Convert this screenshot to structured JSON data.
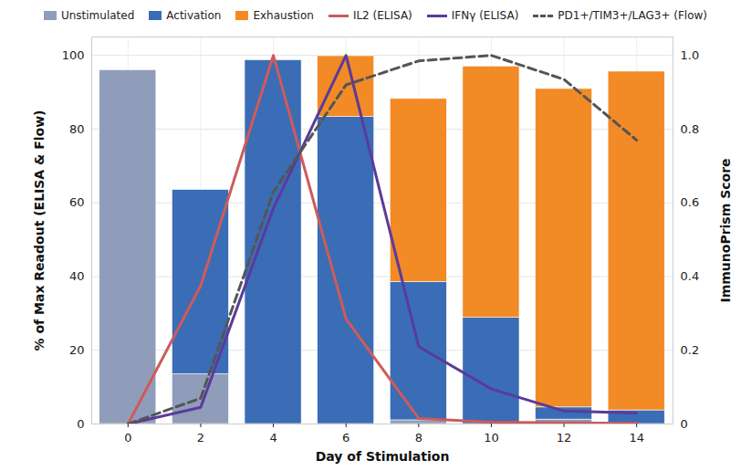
{
  "chart_data": {
    "type": "bar",
    "stacked": true,
    "grid": true,
    "legend": "top",
    "x_label": "Day of Stimulation",
    "y_label": "% of Max Readout (ELISA & Flow)",
    "y2_label": "ImmunoPrism Score",
    "x": [
      0,
      2,
      4,
      6,
      8,
      10,
      12,
      14
    ],
    "xlim": [
      -1,
      15
    ],
    "xticks": [
      0,
      2,
      4,
      6,
      8,
      10,
      12,
      14
    ],
    "ylim": [
      0,
      105
    ],
    "yticks": [
      0,
      20,
      40,
      60,
      80,
      100
    ],
    "y2lim": [
      0,
      1.05
    ],
    "y2ticks": [
      0,
      0.2,
      0.4,
      0.6,
      0.8,
      {
        "value": 1,
        "label": "1.0"
      }
    ],
    "series": [
      {
        "name": "Unstimulated",
        "type": "bar",
        "color": "#8f9dba",
        "values": [
          96,
          13.5,
          0,
          0,
          1,
          0,
          1.2,
          0
        ]
      },
      {
        "name": "Activation",
        "type": "bar",
        "color": "#3a6db5",
        "values": [
          0,
          50,
          98.7,
          83.3,
          37.5,
          28.8,
          3.3,
          3.7
        ]
      },
      {
        "name": "Exhaustion",
        "type": "bar",
        "color": "#f28a26",
        "values": [
          0,
          0,
          0,
          16.5,
          49.7,
          68.2,
          86.4,
          91.9
        ]
      },
      {
        "name": "IL2 (ELISA)",
        "type": "line",
        "color": "#d05a5a",
        "line_style": "solid",
        "values": [
          0,
          37.5,
          100,
          28.5,
          1.5,
          0.5,
          0.3,
          0.2
        ]
      },
      {
        "name": "IFNγ (ELISA)",
        "type": "line",
        "color": "#5b3a9b",
        "line_style": "solid",
        "values": [
          0,
          4.5,
          58.5,
          100,
          21,
          9.5,
          3.5,
          3
        ]
      },
      {
        "name": "PD1+/TIM3+/LAG3+ (Flow)",
        "type": "line",
        "axis": "y2",
        "color": "#555555",
        "line_style": "dashed",
        "values": [
          0,
          0.07,
          0.63,
          0.92,
          0.985,
          1.0,
          0.935,
          0.77
        ]
      }
    ]
  }
}
